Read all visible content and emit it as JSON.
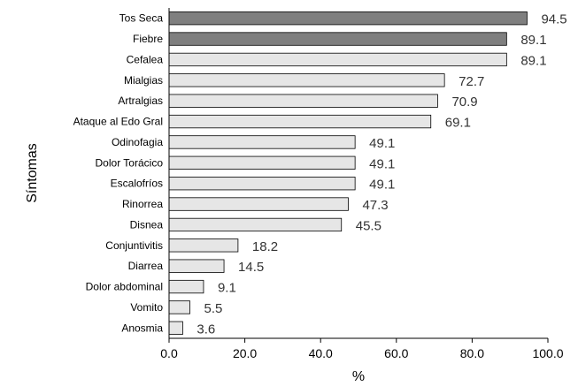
{
  "chart_data": {
    "type": "bar",
    "orientation": "horizontal",
    "title": "",
    "xlabel": "%",
    "ylabel": "Síntomas",
    "xlim": [
      0,
      100
    ],
    "xticks": [
      "0.0",
      "20.0",
      "40.0",
      "60.0",
      "80.0",
      "100.0"
    ],
    "categories": [
      "Tos Seca",
      "Fiebre",
      "Cefalea",
      "Mialgias",
      "Artralgias",
      "Ataque al Edo Gral",
      "Odinofagia",
      "Dolor Torácico",
      "Escalofríos",
      "Rinorrea",
      "Disnea",
      "Conjuntivitis",
      "Diarrea",
      "Dolor abdominal",
      "Vomito",
      "Anosmia"
    ],
    "values": [
      94.5,
      89.1,
      89.1,
      72.7,
      70.9,
      69.1,
      49.1,
      49.1,
      49.1,
      47.3,
      45.5,
      18.2,
      14.5,
      9.1,
      5.5,
      3.6
    ],
    "value_labels": [
      "94.5",
      "89.1",
      "89.1",
      "72.7",
      "70.9",
      "69.1",
      "49.1",
      "49.1",
      "49.1",
      "47.3",
      "45.5",
      "18.2",
      "14.5",
      "9.1",
      "5.5",
      "3.6"
    ],
    "highlighted": [
      true,
      true,
      false,
      false,
      false,
      false,
      false,
      false,
      false,
      false,
      false,
      false,
      false,
      false,
      false,
      false
    ],
    "colors": {
      "highlight": "#7f7f7f",
      "normal": "#e6e6e6",
      "stroke": "#000000"
    },
    "grid": false,
    "legend": "none"
  }
}
